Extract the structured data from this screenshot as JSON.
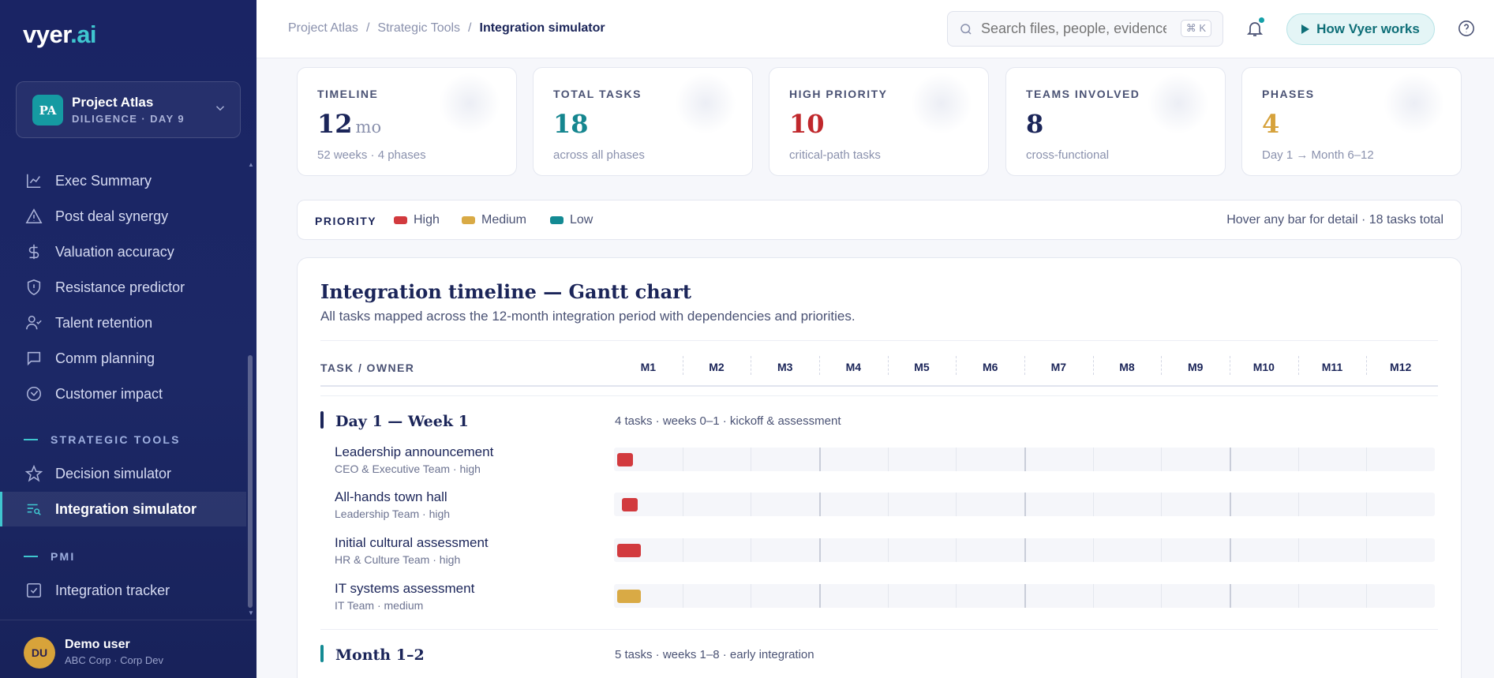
{
  "app": {
    "logo_main": "vyer",
    "logo_suffix": ".ai"
  },
  "project": {
    "badge": "PA",
    "name": "Project Atlas",
    "subtitle": "DILIGENCE · DAY 9"
  },
  "sidebar": {
    "items": [
      {
        "label": "Exec Summary",
        "icon": "chart-line-icon"
      },
      {
        "label": "Post deal synergy",
        "icon": "warning-triangle-icon"
      },
      {
        "label": "Valuation accuracy",
        "icon": "dollar-icon"
      },
      {
        "label": "Resistance predictor",
        "icon": "shield-icon"
      },
      {
        "label": "Talent retention",
        "icon": "user-check-icon"
      },
      {
        "label": "Comm planning",
        "icon": "message-icon"
      },
      {
        "label": "Customer impact",
        "icon": "gauge-icon"
      }
    ],
    "section_strategic": "STRATEGIC TOOLS",
    "strategic_items": [
      {
        "label": "Decision simulator",
        "icon": "star-icon"
      },
      {
        "label": "Integration simulator",
        "icon": "list-search-icon",
        "active": true
      }
    ],
    "section_pmi": "PMI",
    "pmi_items": [
      {
        "label": "Integration tracker",
        "icon": "checkbox-icon"
      }
    ]
  },
  "user": {
    "initials": "DU",
    "name": "Demo user",
    "org": "ABC Corp · Corp Dev"
  },
  "breadcrumb": {
    "items": [
      "Project Atlas",
      "Strategic Tools"
    ],
    "current": "Integration simulator",
    "separator": "/"
  },
  "search": {
    "placeholder": "Search files, people, evidence…",
    "shortcut": "⌘ K"
  },
  "header": {
    "how_button": "How Vyer works"
  },
  "stats": [
    {
      "label": "TIMELINE",
      "value": "12",
      "unit": "mo",
      "sub": "52 weeks · 4 phases",
      "color": "#1b2559"
    },
    {
      "label": "TOTAL TASKS",
      "value": "18",
      "unit": "",
      "sub": "across all phases",
      "color": "#15868f"
    },
    {
      "label": "HIGH PRIORITY",
      "value": "10",
      "unit": "",
      "sub": "critical-path tasks",
      "color": "#c0282c"
    },
    {
      "label": "TEAMS INVOLVED",
      "value": "8",
      "unit": "",
      "sub": "cross-functional",
      "color": "#1b2559"
    },
    {
      "label": "PHASES",
      "value": "4",
      "unit": "",
      "sub": "Day 1 → Month 6–12",
      "color": "#d6a23c"
    }
  ],
  "legend": {
    "title": "PRIORITY",
    "items": [
      {
        "label": "High",
        "color": "#d23a3e"
      },
      {
        "label": "Medium",
        "color": "#d9aa45"
      },
      {
        "label": "Low",
        "color": "#138a93"
      }
    ],
    "hint": "Hover any bar for detail · 18 tasks total"
  },
  "gantt": {
    "title": "Integration timeline — Gantt chart",
    "description": "All tasks mapped across the 12-month integration period with dependencies and priorities.",
    "task_header": "TASK / OWNER",
    "months": [
      "M1",
      "M2",
      "M3",
      "M4",
      "M5",
      "M6",
      "M7",
      "M8",
      "M9",
      "M10",
      "M11",
      "M12"
    ],
    "phases": [
      {
        "title": "Day 1 — Week 1",
        "meta": "4 tasks · weeks 0–1 · kickoff & assessment",
        "color": "#1b2559",
        "tasks": [
          {
            "name": "Leadership announcement",
            "owner": "CEO & Executive Team · high",
            "priority": "high",
            "start_week": 0,
            "end_week": 0.5
          },
          {
            "name": "All-hands town hall",
            "owner": "Leadership Team · high",
            "priority": "high",
            "start_week": 0.3,
            "end_week": 0.8
          },
          {
            "name": "Initial cultural assessment",
            "owner": "HR & Culture Team · high",
            "priority": "high",
            "start_week": 0,
            "end_week": 1
          },
          {
            "name": "IT systems assessment",
            "owner": "IT Team · medium",
            "priority": "medium",
            "start_week": 0,
            "end_week": 1
          }
        ]
      },
      {
        "title": "Month 1–2",
        "meta": "5 tasks · weeks 1–8 · early integration",
        "color": "#138a93",
        "tasks": []
      }
    ]
  }
}
